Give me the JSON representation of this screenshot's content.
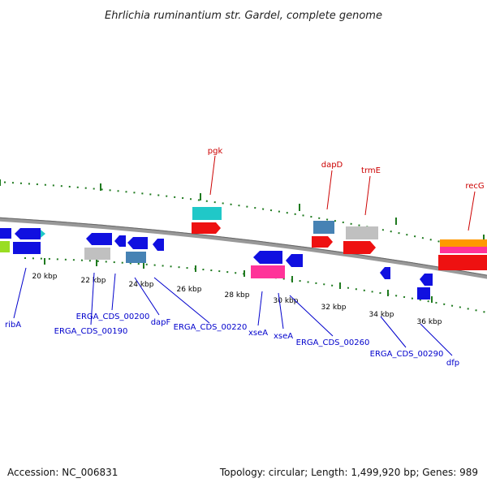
{
  "title": "Ehrlichia ruminantium str. Gardel, complete genome",
  "footer": {
    "accession": "Accession: NC_006831",
    "summary": "Topology: circular; Length: 1,499,920 bp; Genes: 989"
  },
  "colors": {
    "backbone": "#8a8a8a",
    "tick_green": "#1f7a1f",
    "label_red": "#cc0000",
    "label_blue": "#0000cc",
    "feature_blue": "#1010e0",
    "feature_red": "#ee1111",
    "feature_cyan": "#20c8c8",
    "feature_steel": "#4682b4",
    "feature_gray": "#c0c0c0",
    "feature_pink": "#ff3399",
    "feature_orange": "#ff9900",
    "feature_lime": "#99dd22"
  },
  "ticks": [
    "20 kbp",
    "22 kbp",
    "24 kbp",
    "26 kbp",
    "28 kbp",
    "30 kbp",
    "32 kbp",
    "34 kbp",
    "36 kbp"
  ],
  "labels_top": [
    "pgk",
    "dapD",
    "trmE",
    "recG"
  ],
  "labels_bottom": [
    "ribA",
    "ERGA_CDS_00200",
    "ERGA_CDS_00190",
    "dapF",
    "ERGA_CDS_00220",
    "xseA",
    "xseA",
    "ERGA_CDS_00260",
    "ERGA_CDS_00290",
    "dfp"
  ]
}
